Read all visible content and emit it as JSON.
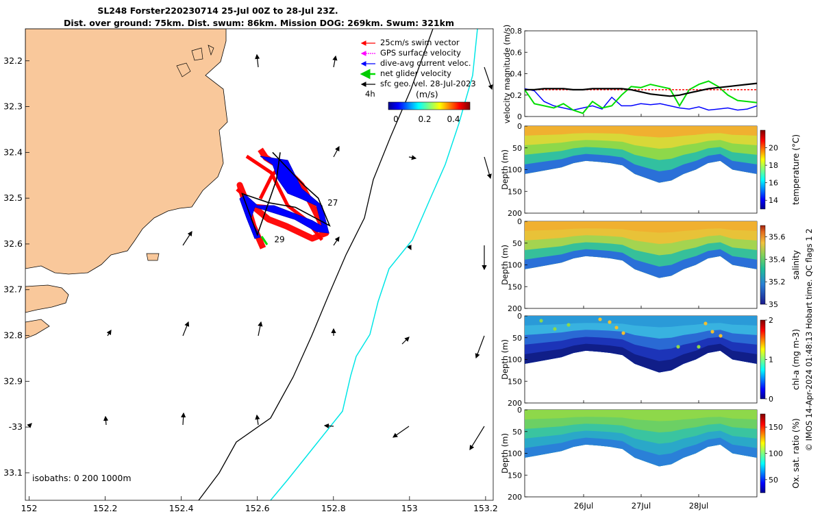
{
  "header": {
    "title_line1": "SL248 Forster220230714 25-Jul 00Z to 28-Jul 23Z.",
    "title_line2": "Dist. over ground: 75km. Dist. swum: 86km. Mission DOG: 269km. Swum: 321km"
  },
  "map": {
    "lon_ticks": [
      "152",
      "152.2",
      "152.4",
      "152.6",
      "152.8",
      "153",
      "153.2"
    ],
    "lat_ticks": [
      "32.2",
      "32.3",
      "32.4",
      "32.5",
      "32.6",
      "32.7",
      "32.8",
      "32.9",
      "-33",
      "33.1"
    ],
    "isobaths_label": "isobaths: 0   200  1000m",
    "legend": [
      {
        "label": "25cm/s swim vector",
        "color": "#ff0000"
      },
      {
        "label": "GPS surface velocity",
        "color": "#ff00ff"
      },
      {
        "label": "dive-avg current veloc.",
        "color": "#0000ff"
      },
      {
        "label": "net glider velocity",
        "color": "#00dd00"
      },
      {
        "label": "sfc geo. vel. 28-Jul-2023",
        "color": "#000000"
      }
    ],
    "colorbar_title": "(m/s)",
    "colorbar_left_label": "4h",
    "colorbar_ticks": [
      "0",
      "0.2",
      "0.4"
    ],
    "day_labels": [
      "27",
      "29"
    ],
    "land_color": "#f9c89b"
  },
  "side": {
    "copyright": "© IMOS 14-Apr-2024 01:48:13 Hobart time. QC flags 1  2",
    "date_ticks": [
      "26Jul",
      "27Jul",
      "28Jul"
    ],
    "velocity_panel": {
      "ylabel": "velocity magnitude (m/s)",
      "yticks": [
        "0",
        "0.2",
        "0.4",
        "0.6",
        "0.8"
      ]
    },
    "depth_ticks": [
      "0",
      "50",
      "100",
      "150",
      "200"
    ],
    "depth_label": "Depth (m)",
    "panels": [
      {
        "cblabel": "temperature (°C)",
        "cbticks": [
          "14",
          "16",
          "18",
          "20"
        ]
      },
      {
        "cblabel": "salinity",
        "cbticks": [
          "35",
          "35.2",
          "35.4",
          "35.6"
        ]
      },
      {
        "cblabel": "chl-a (mg m-3)",
        "cbticks": [
          "0",
          "1",
          "2"
        ]
      },
      {
        "cblabel": "Ox. sat. ratio (%)",
        "cbticks": [
          "50",
          "100",
          "150"
        ]
      }
    ]
  },
  "chart_data": [
    {
      "type": "scatter",
      "title": "SL248 Forster220230714 25-Jul 00Z to 28-Jul 23Z.",
      "xlabel": "",
      "ylabel": "",
      "xlim": [
        151.99,
        153.22
      ],
      "ylim": [
        -33.16,
        -32.13
      ],
      "glider_track": [
        [
          152.64,
          -32.4
        ],
        [
          152.72,
          -32.47
        ],
        [
          152.76,
          -32.5
        ],
        [
          152.79,
          -32.56
        ],
        [
          152.7,
          -32.52
        ],
        [
          152.63,
          -32.51
        ],
        [
          152.56,
          -32.49
        ],
        [
          152.6,
          -32.58
        ],
        [
          152.65,
          -32.46
        ],
        [
          152.66,
          -32.4
        ]
      ],
      "day_markers": [
        {
          "label": "27",
          "x": 152.77,
          "y": -32.51
        },
        {
          "label": "29",
          "x": 152.63,
          "y": -32.59
        }
      ]
    },
    {
      "type": "line",
      "title": "",
      "xlabel": "",
      "ylabel": "velocity magnitude (m/s)",
      "xlim": [
        "2023-07-25",
        "2023-07-29"
      ],
      "ylim": [
        0,
        0.8
      ],
      "series": [
        {
          "name": "dive-avg current veloc.",
          "color": "#0000ff",
          "values": [
            0.26,
            0.24,
            0.14,
            0.1,
            0.08,
            0.06,
            0.08,
            0.1,
            0.07,
            0.18,
            0.1,
            0.1,
            0.12,
            0.11,
            0.12,
            0.1,
            0.08,
            0.07,
            0.09,
            0.06,
            0.07,
            0.08,
            0.06,
            0.07,
            0.1
          ]
        },
        {
          "name": "net glider velocity",
          "color": "#00dd00",
          "values": [
            0.25,
            0.12,
            0.1,
            0.08,
            0.12,
            0.06,
            0.03,
            0.14,
            0.08,
            0.1,
            0.2,
            0.28,
            0.27,
            0.3,
            0.28,
            0.26,
            0.1,
            0.25,
            0.3,
            0.33,
            0.28,
            0.2,
            0.15,
            0.14,
            0.13
          ]
        },
        {
          "name": "25cm/s swim vector",
          "color": "#ff0000",
          "values": [
            0.25,
            0.25,
            0.25,
            0.25,
            0.25,
            0.25,
            0.25,
            0.25,
            0.25,
            0.25,
            0.25,
            0.25,
            0.25,
            0.25,
            0.25,
            0.25,
            0.25,
            0.25,
            0.25,
            0.25,
            0.25,
            0.25,
            0.25,
            0.25,
            0.25
          ]
        },
        {
          "name": "sfc geo. vel. 28-Jul-2023",
          "color": "#000000",
          "values": [
            0.25,
            0.25,
            0.26,
            0.26,
            0.26,
            0.25,
            0.25,
            0.26,
            0.26,
            0.26,
            0.26,
            0.25,
            0.23,
            0.21,
            0.2,
            0.19,
            0.2,
            0.22,
            0.24,
            0.26,
            0.27,
            0.28,
            0.29,
            0.3,
            0.31
          ]
        }
      ]
    },
    {
      "type": "heatmap",
      "title": "",
      "xlabel": "",
      "ylabel": "Depth (m)",
      "xlim": [
        "2023-07-25",
        "2023-07-29"
      ],
      "ylim": [
        200,
        0
      ],
      "colorbar": "temperature (°C)",
      "clim": [
        13,
        22
      ],
      "profile_depth": [
        110,
        105,
        100,
        95,
        85,
        80,
        82,
        85,
        90,
        110,
        120,
        130,
        125,
        110,
        100,
        85,
        80,
        100,
        105,
        110
      ]
    },
    {
      "type": "heatmap",
      "title": "",
      "xlabel": "",
      "ylabel": "Depth (m)",
      "xlim": [
        "2023-07-25",
        "2023-07-29"
      ],
      "ylim": [
        200,
        0
      ],
      "colorbar": "salinity",
      "clim": [
        35,
        35.7
      ],
      "profile_depth": [
        110,
        105,
        100,
        95,
        85,
        80,
        82,
        85,
        90,
        110,
        120,
        130,
        125,
        110,
        100,
        85,
        80,
        100,
        105,
        110
      ]
    },
    {
      "type": "heatmap",
      "title": "",
      "xlabel": "",
      "ylabel": "Depth (m)",
      "xlim": [
        "2023-07-25",
        "2023-07-29"
      ],
      "ylim": [
        200,
        0
      ],
      "colorbar": "chl-a (mg m-3)",
      "clim": [
        0,
        2
      ],
      "profile_depth": [
        110,
        105,
        100,
        95,
        85,
        80,
        82,
        85,
        90,
        110,
        120,
        130,
        125,
        110,
        100,
        85,
        80,
        100,
        105,
        110
      ]
    },
    {
      "type": "heatmap",
      "title": "",
      "xlabel": "",
      "ylabel": "Depth (m)",
      "xlim": [
        "2023-07-25",
        "2023-07-29"
      ],
      "ylim": [
        200,
        0
      ],
      "colorbar": "Ox. sat. ratio (%)",
      "clim": [
        25,
        175
      ],
      "profile_depth": [
        110,
        105,
        100,
        95,
        85,
        80,
        82,
        85,
        90,
        110,
        120,
        130,
        125,
        110,
        100,
        85,
        80,
        100,
        105,
        110
      ]
    }
  ]
}
